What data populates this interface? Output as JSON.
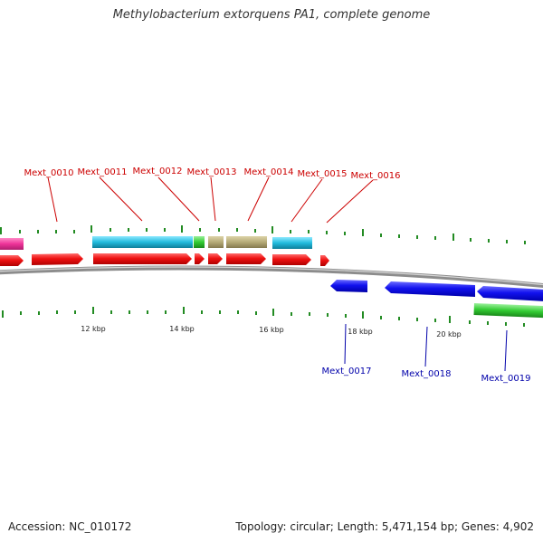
{
  "title": "Methylobacterium extorquens PA1, complete genome",
  "footer": {
    "accession": "Accession: NC_010172",
    "summary": "Topology: circular; Length: 5,471,154 bp; Genes: 4,902"
  },
  "colors": {
    "forward_cds": "#ee1111",
    "reverse_cds": "#1111ee",
    "backbone": "#8c8c8c",
    "ticks": "#228b22",
    "label_top": "#cc0000",
    "label_bottom": "#0000aa",
    "cyan_feature": "#22bbdd",
    "khaki_feature": "#b5aa77",
    "green_feature": "#33cc33",
    "pink_feature": "#ee3399"
  },
  "scale_labels": [
    "12 kbp",
    "14 kbp",
    "16 kbp",
    "18 kbp",
    "20 kbp"
  ],
  "top_genes": [
    "Mext_0010",
    "Mext_0011",
    "Mext_0012",
    "Mext_0013",
    "Mext_0014",
    "Mext_0015",
    "Mext_0016"
  ],
  "bottom_genes": [
    "Mext_0017",
    "Mext_0018",
    "Mext_0019"
  ]
}
